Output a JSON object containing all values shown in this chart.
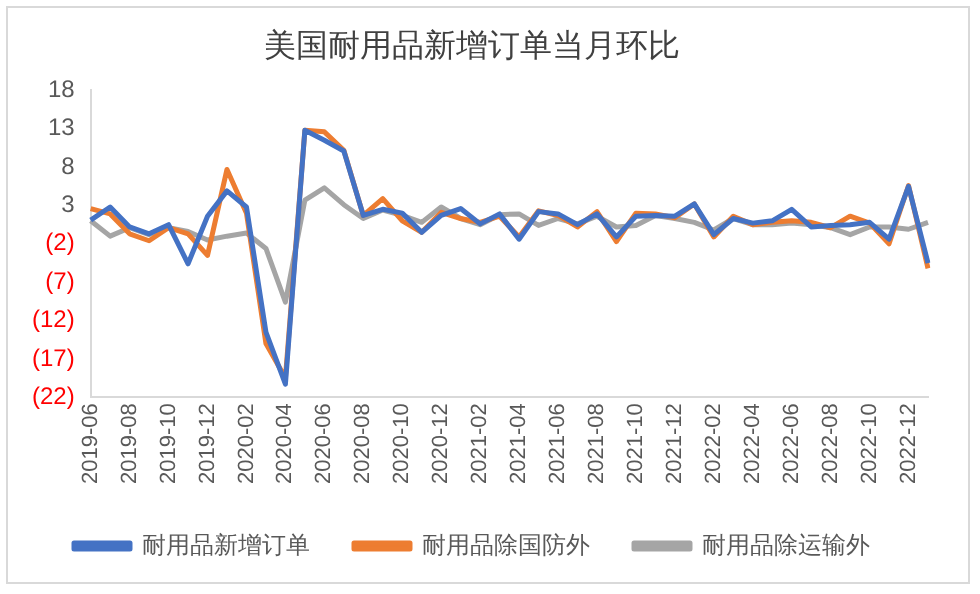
{
  "chart_data": {
    "type": "line",
    "title": "美国耐用品新增订单当月环比",
    "categories": [
      "2019-06",
      null,
      "2019-08",
      null,
      "2019-10",
      null,
      "2019-12",
      null,
      "2020-02",
      null,
      "2020-04",
      null,
      "2020-06",
      null,
      "2020-08",
      null,
      "2020-10",
      null,
      "2020-12",
      null,
      "2021-02",
      null,
      "2021-04",
      null,
      "2021-06",
      null,
      "2021-08",
      null,
      "2021-10",
      null,
      "2021-12",
      null,
      "2022-02",
      null,
      "2022-04",
      null,
      "2022-06",
      null,
      "2022-08",
      null,
      "2022-10",
      null,
      "2022-12",
      null
    ],
    "series": [
      {
        "name": "耐用品新增订单",
        "color": "#4472c4",
        "values": [
          1.1,
          2.8,
          0.2,
          -0.7,
          0.5,
          -4.6,
          1.6,
          4.9,
          2.8,
          -13.5,
          -20.3,
          12.8,
          11.5,
          10.1,
          1.7,
          2.5,
          2.0,
          -0.5,
          1.7,
          2.6,
          0.6,
          1.9,
          -1.4,
          2.2,
          1.9,
          0.5,
          1.9,
          -1.1,
          1.6,
          1.7,
          1.6,
          3.2,
          -0.8,
          1.3,
          0.7,
          1.0,
          2.5,
          0.2,
          0.4,
          0.5,
          0.8,
          -1.4,
          5.5,
          -4.5
        ]
      },
      {
        "name": "耐用品除国防外",
        "color": "#ed7d31",
        "values": [
          2.6,
          1.9,
          -0.7,
          -1.6,
          0.1,
          -0.7,
          -3.5,
          7.7,
          2.0,
          -15,
          -19.5,
          12.8,
          12.6,
          10.2,
          1.7,
          3.9,
          1.0,
          -0.5,
          2.1,
          1.3,
          0.8,
          1.6,
          -1.1,
          2.3,
          1.7,
          0.2,
          2.2,
          -1.7,
          2.0,
          1.9,
          1.4,
          3.2,
          -1.1,
          1.6,
          0.5,
          0.8,
          1.0,
          0.8,
          0.1,
          1.6,
          0.7,
          -2.0,
          5.6,
          -5.2
        ]
      },
      {
        "name": "耐用品除运输外",
        "color": "#a5a5a5",
        "values": [
          1.0,
          -1.0,
          0.1,
          -0.8,
          0.1,
          -0.4,
          -1.5,
          -1.0,
          -0.6,
          -2.6,
          -9.6,
          3.7,
          5.3,
          3.1,
          1.3,
          2.4,
          1.7,
          0.8,
          2.8,
          1.3,
          0.5,
          1.8,
          1.9,
          0.4,
          1.3,
          0.6,
          1.6,
          0.2,
          0.4,
          1.7,
          1.3,
          0.8,
          -0.2,
          1.3,
          0.5,
          0.5,
          0.7,
          0.5,
          0.1,
          -0.8,
          0.2,
          0.2,
          -0.1,
          0.8
        ]
      }
    ],
    "ylim": [
      -22,
      18
    ],
    "yticks": [
      18,
      13,
      8,
      3,
      {
        "value": -2,
        "label": "(2)"
      },
      {
        "value": -7,
        "label": "(7)"
      },
      {
        "value": -12,
        "label": "(12)"
      },
      {
        "value": -17,
        "label": "(17)"
      },
      {
        "value": -22,
        "label": "(22)"
      }
    ],
    "legend": "bottom",
    "marker": "none"
  }
}
